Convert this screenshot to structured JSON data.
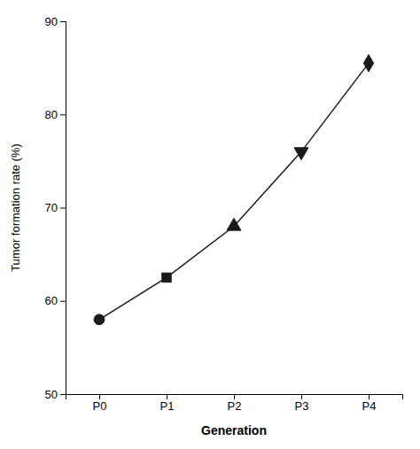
{
  "chart_data": {
    "type": "line",
    "categories": [
      "P0",
      "P1",
      "P2",
      "P3",
      "P4"
    ],
    "values": [
      58,
      62.5,
      68,
      76,
      85.5
    ],
    "color": "#1a1a1a",
    "marker": [
      "circle",
      "square",
      "triangle-up",
      "triangle-down",
      "diamond"
    ],
    "xlabel": "Generation",
    "ylabel": "Tumor formation rate (%)",
    "ylim": [
      50,
      90
    ],
    "yticks": [
      50,
      60,
      70,
      80,
      90
    ]
  }
}
